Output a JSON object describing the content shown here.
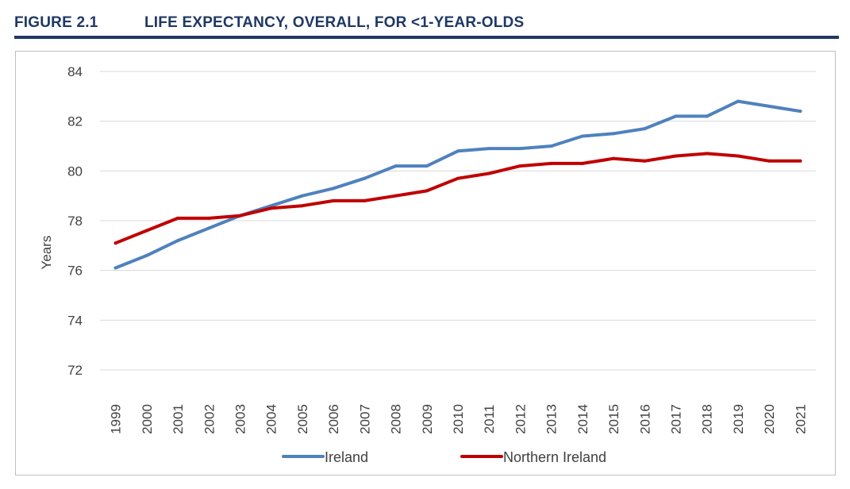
{
  "figure": {
    "number": "FIGURE 2.1",
    "title": "LIFE EXPECTANCY, OVERALL, FOR <1-YEAR-OLDS"
  },
  "colors": {
    "header": "#1f3864",
    "ireland": "#4f81bd",
    "northern_ireland": "#c00000",
    "grid": "#d9d9d9"
  },
  "chart_data": {
    "type": "line",
    "title": "LIFE EXPECTANCY, OVERALL, FOR <1-YEAR-OLDS",
    "xlabel": "",
    "ylabel": "Years",
    "ylim": [
      72,
      84
    ],
    "yticks": [
      72,
      74,
      76,
      78,
      80,
      82,
      84
    ],
    "grid": true,
    "legend": "bottom",
    "categories": [
      "1999",
      "2000",
      "2001",
      "2002",
      "2003",
      "2004",
      "2005",
      "2006",
      "2007",
      "2008",
      "2009",
      "2010",
      "2011",
      "2012",
      "2013",
      "2014",
      "2015",
      "2016",
      "2017",
      "2018",
      "2019",
      "2020",
      "2021"
    ],
    "series": [
      {
        "name": "Ireland",
        "color": "#4f81bd",
        "values": [
          76.1,
          76.6,
          77.2,
          77.7,
          78.2,
          78.6,
          79.0,
          79.3,
          79.7,
          80.2,
          80.2,
          80.8,
          80.9,
          80.9,
          81.0,
          81.4,
          81.5,
          81.7,
          82.2,
          82.2,
          82.8,
          82.6,
          82.4
        ]
      },
      {
        "name": "Northern Ireland",
        "color": "#c00000",
        "values": [
          77.1,
          77.6,
          78.1,
          78.1,
          78.2,
          78.5,
          78.6,
          78.8,
          78.8,
          79.0,
          79.2,
          79.7,
          79.9,
          80.2,
          80.3,
          80.3,
          80.5,
          80.4,
          80.6,
          80.7,
          80.6,
          80.4,
          80.4
        ]
      }
    ]
  }
}
